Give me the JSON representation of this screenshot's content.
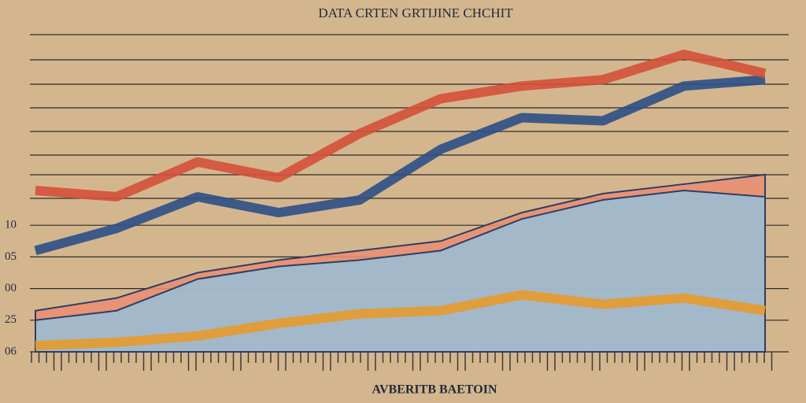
{
  "chart_data": {
    "type": "line",
    "title": "DATA CRTEN GRTIJINE CHCHIT",
    "x_label": "AVBERITB BAETOIN",
    "categories": [
      null,
      null,
      null,
      null,
      null,
      null,
      null,
      null,
      null,
      null
    ],
    "ylim": [
      0,
      10
    ],
    "yticks": [
      {
        "value": 0,
        "label": "06"
      },
      {
        "value": 1,
        "label": "25"
      },
      {
        "value": 2,
        "label": "00"
      },
      {
        "value": 3,
        "label": "05"
      },
      {
        "value": 4,
        "label": "10"
      }
    ],
    "grid": true,
    "series": [
      {
        "name": "Salmon area",
        "kind": "area",
        "color": "#e98f72",
        "values": [
          1.3,
          1.7,
          2.5,
          2.9,
          3.2,
          3.5,
          4.4,
          5.0,
          5.3,
          5.6
        ]
      },
      {
        "name": "Blue area",
        "kind": "area",
        "color": "#9bbcd2",
        "values": [
          1.0,
          1.3,
          2.3,
          2.7,
          2.9,
          3.2,
          4.2,
          4.8,
          5.1,
          4.9
        ]
      },
      {
        "name": "Orange line",
        "kind": "line",
        "color": "#e79a2c",
        "values": [
          0.2,
          0.3,
          0.5,
          0.9,
          1.2,
          1.3,
          1.8,
          1.5,
          1.7,
          1.3
        ]
      },
      {
        "name": "Blue line",
        "kind": "line",
        "color": "#2c4f86",
        "values": [
          3.2,
          3.9,
          4.9,
          4.4,
          4.8,
          6.4,
          7.4,
          7.3,
          8.4,
          8.6
        ]
      },
      {
        "name": "Red line",
        "kind": "line",
        "color": "#d4503a",
        "values": [
          5.1,
          4.9,
          6.0,
          5.5,
          6.9,
          8.0,
          8.4,
          8.6,
          9.4,
          8.8
        ]
      }
    ]
  }
}
